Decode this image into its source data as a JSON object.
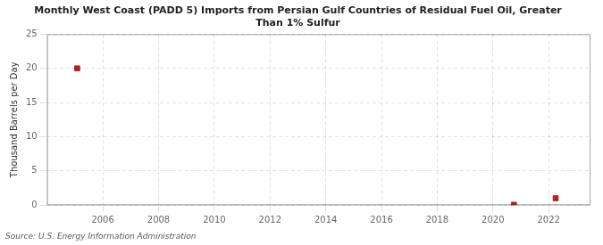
{
  "chart_data": {
    "type": "scatter",
    "title": "Monthly West Coast (PADD 5) Imports from Persian Gulf Countries of Residual Fuel Oil, Greater\nThan 1% Sulfur",
    "ylabel": "Thousand Barrels per Day",
    "source": "Source: U.S. Energy Information Administration",
    "x": [
      2005.08,
      2020.75,
      2022.25
    ],
    "values": [
      20.0,
      0.05,
      1.0
    ],
    "color": "#b22222",
    "marker": "square",
    "xlim": [
      2004.0,
      2023.5
    ],
    "xticks": [
      2006,
      2008,
      2010,
      2012,
      2014,
      2016,
      2018,
      2020,
      2022
    ],
    "ylim": [
      0,
      25
    ],
    "yticks": [
      0,
      5,
      10,
      15,
      20,
      25
    ],
    "grid": true
  }
}
